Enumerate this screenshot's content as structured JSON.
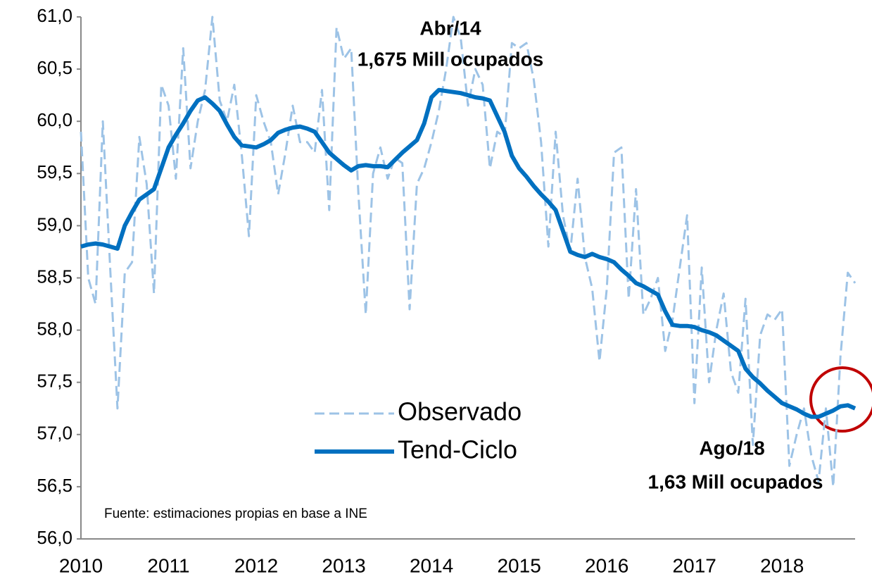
{
  "chart_data": {
    "type": "line",
    "categories": [
      "2010",
      null,
      null,
      null,
      null,
      null,
      null,
      null,
      null,
      null,
      null,
      null,
      "2011",
      null,
      null,
      null,
      null,
      null,
      null,
      null,
      null,
      null,
      null,
      null,
      "2012",
      null,
      null,
      null,
      null,
      null,
      null,
      null,
      null,
      null,
      null,
      null,
      "2013",
      null,
      null,
      null,
      null,
      null,
      null,
      null,
      null,
      null,
      null,
      null,
      "2014",
      null,
      null,
      null,
      null,
      null,
      null,
      null,
      null,
      null,
      null,
      null,
      "2015",
      null,
      null,
      null,
      null,
      null,
      null,
      null,
      null,
      null,
      null,
      null,
      "2016",
      null,
      null,
      null,
      null,
      null,
      null,
      null,
      null,
      null,
      null,
      null,
      "2017",
      null,
      null,
      null,
      null,
      null,
      null,
      null,
      null,
      null,
      null,
      null,
      "2018",
      null,
      null,
      null,
      null,
      null,
      null,
      null,
      null,
      null,
      null
    ],
    "series": [
      {
        "name": "Observado",
        "color": "#9dc3e6",
        "dashed": true,
        "values": [
          59.9,
          58.5,
          58.25,
          60.0,
          58.6,
          57.25,
          58.55,
          58.65,
          59.85,
          59.4,
          58.35,
          60.35,
          60.15,
          59.45,
          60.7,
          59.55,
          60.0,
          60.3,
          61.0,
          60.2,
          60.0,
          60.35,
          59.7,
          58.9,
          60.25,
          60.0,
          59.8,
          59.3,
          59.7,
          60.15,
          59.8,
          59.8,
          59.7,
          60.3,
          59.15,
          60.9,
          60.6,
          60.7,
          59.3,
          58.15,
          59.5,
          59.75,
          59.45,
          59.65,
          59.6,
          58.2,
          59.4,
          59.55,
          59.8,
          60.1,
          60.5,
          61.0,
          60.8,
          60.15,
          60.5,
          60.35,
          59.55,
          59.9,
          59.85,
          60.75,
          60.7,
          60.75,
          60.4,
          59.8,
          58.8,
          59.9,
          59.1,
          58.75,
          59.45,
          58.7,
          58.4,
          57.7,
          58.4,
          59.7,
          59.75,
          58.3,
          59.35,
          58.15,
          58.3,
          58.5,
          57.8,
          58.1,
          58.6,
          59.1,
          57.3,
          58.6,
          57.5,
          58.0,
          58.35,
          57.6,
          57.4,
          58.3,
          56.9,
          57.95,
          58.15,
          58.1,
          58.2,
          56.7,
          57.0,
          57.25,
          56.8,
          56.55,
          57.25,
          56.5,
          57.75,
          58.55,
          58.45
        ]
      },
      {
        "name": "Tend-Ciclo",
        "color": "#0070c0",
        "dashed": false,
        "values": [
          58.8,
          58.82,
          58.83,
          58.82,
          58.8,
          58.78,
          59.0,
          59.13,
          59.25,
          59.3,
          59.35,
          59.55,
          59.75,
          59.87,
          59.98,
          60.1,
          60.2,
          60.23,
          60.17,
          60.1,
          59.97,
          59.85,
          59.77,
          59.76,
          59.75,
          59.78,
          59.82,
          59.89,
          59.92,
          59.94,
          59.95,
          59.93,
          59.9,
          59.8,
          59.7,
          59.64,
          59.58,
          59.53,
          59.57,
          59.58,
          59.57,
          59.57,
          59.56,
          59.63,
          59.7,
          59.76,
          59.82,
          59.98,
          60.23,
          60.3,
          60.29,
          60.28,
          60.27,
          60.25,
          60.23,
          60.22,
          60.2,
          60.05,
          59.9,
          59.67,
          59.55,
          59.47,
          59.38,
          59.3,
          59.23,
          59.15,
          58.95,
          58.75,
          58.72,
          58.7,
          58.73,
          58.7,
          58.68,
          58.65,
          58.58,
          58.52,
          58.45,
          58.42,
          58.38,
          58.34,
          58.18,
          58.05,
          58.04,
          58.04,
          58.03,
          58.0,
          57.98,
          57.95,
          57.9,
          57.85,
          57.8,
          57.63,
          57.55,
          57.49,
          57.42,
          57.36,
          57.3,
          57.27,
          57.24,
          57.2,
          57.17,
          57.17,
          57.2,
          57.23,
          57.27,
          57.28,
          57.25
        ]
      }
    ],
    "ylim": [
      56,
      61
    ],
    "yticks": [
      {
        "value": 56,
        "label": "56,0"
      },
      {
        "value": 56.5,
        "label": "56,5"
      },
      {
        "value": 57,
        "label": "57,0"
      },
      {
        "value": 57.5,
        "label": "57,5"
      },
      {
        "value": 58,
        "label": "58,0"
      },
      {
        "value": 58.5,
        "label": "58,5"
      },
      {
        "value": 59,
        "label": "59,0"
      },
      {
        "value": 59.5,
        "label": "59,5"
      },
      {
        "value": 60,
        "label": "60,0"
      },
      {
        "value": 60.5,
        "label": "60,5"
      },
      {
        "value": 61,
        "label": "61,0"
      }
    ],
    "grid": false,
    "annotations": [
      "Abr/14",
      "1,675 Mill ocupados",
      "Ago/18",
      "1,63 Mill ocupados"
    ],
    "source": "Fuente: estimaciones propias en base a INE"
  }
}
